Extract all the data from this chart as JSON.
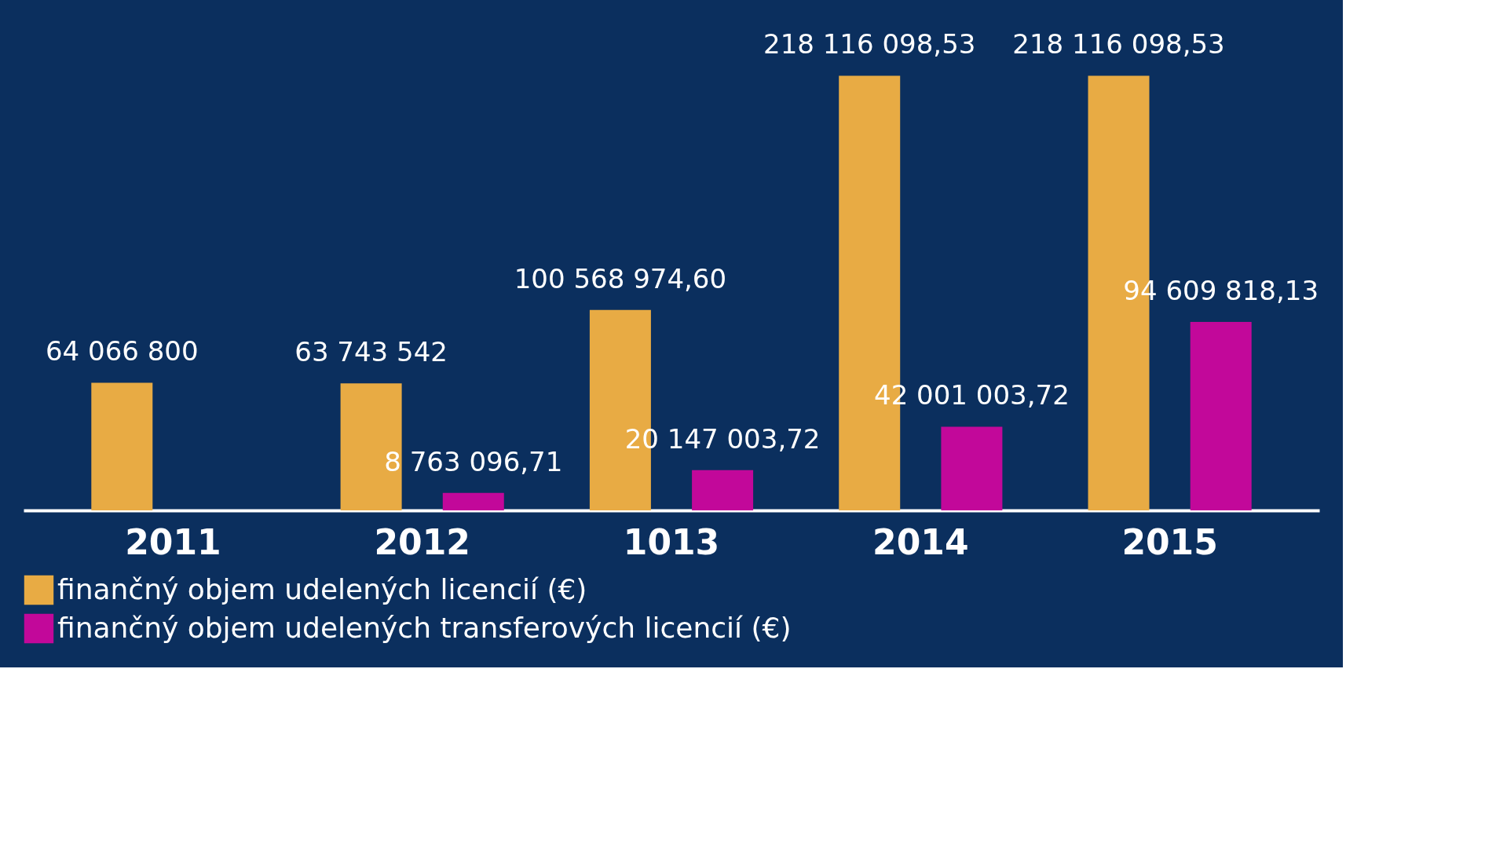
{
  "chart_data": {
    "type": "bar",
    "categories": [
      "2011",
      "2012",
      "1013",
      "2014",
      "2015"
    ],
    "series": [
      {
        "name": "finančný objem udelených licencií (€)",
        "color": "#e8ab44",
        "values": [
          64066800,
          63743542,
          100568974.6,
          218116098.53,
          218116098.53
        ],
        "value_labels": [
          "64 066 800",
          "63 743 542",
          "100 568 974,60",
          "218 116 098,53",
          "218 116 098,53"
        ]
      },
      {
        "name": "finančný objem udelených transferových licencií (€)",
        "color": "#c2089a",
        "values": [
          null,
          8763096.71,
          20147003.72,
          42001003.72,
          94609818.13
        ],
        "value_labels": [
          null,
          "8 763 096,71",
          "20 147 003,72",
          "42 001 003,72",
          "94 609 818,13"
        ]
      }
    ],
    "legend": "bottom",
    "grid": false
  }
}
